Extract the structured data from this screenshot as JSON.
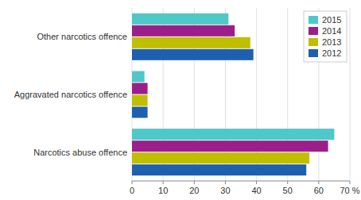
{
  "chart_data": {
    "type": "bar",
    "orientation": "horizontal",
    "categories": [
      "Other narcotics offence",
      "Aggravated narcotics offence",
      "Narcotics abuse offence"
    ],
    "series": [
      {
        "name": "2015",
        "color": "#4EC8C8",
        "values": [
          31,
          4,
          65
        ]
      },
      {
        "name": "2014",
        "color": "#9B1F8A",
        "values": [
          33,
          5,
          63
        ]
      },
      {
        "name": "2013",
        "color": "#BFBF00",
        "values": [
          38,
          5,
          57
        ]
      },
      {
        "name": "2012",
        "color": "#1F5FAF",
        "values": [
          39,
          5,
          56
        ]
      }
    ],
    "xlim": [
      0,
      70
    ],
    "xticks": [
      0,
      10,
      20,
      30,
      40,
      50,
      60,
      {
        "value": 70,
        "label": "70 %"
      }
    ],
    "grid": true,
    "legend": "upper right"
  }
}
